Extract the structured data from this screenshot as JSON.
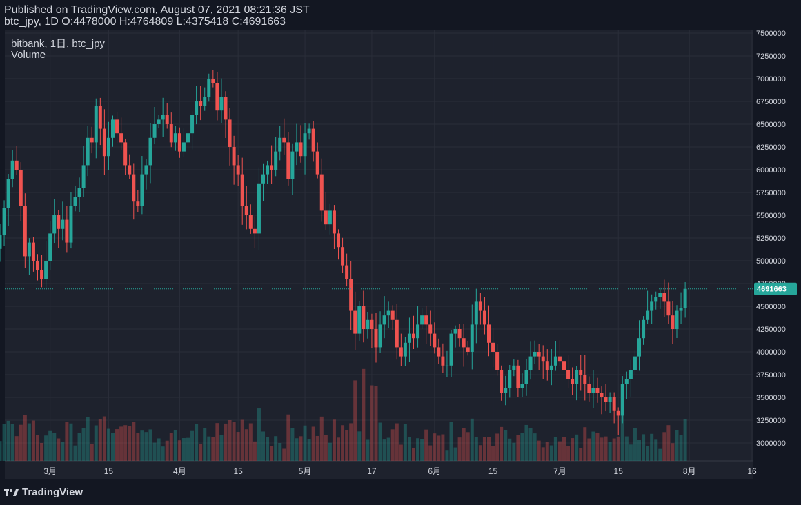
{
  "header": {
    "published": "Published on TradingView.com, August 07, 2021 08:21:36 JST",
    "ohlc": "btc_jpy, 1D O:4478000 H:4764809 L:4375418 C:4691663"
  },
  "legend": {
    "symbol": "bitbank, 1日, btc_jpy",
    "indicator": "Volume"
  },
  "brand": {
    "name": "TradingView"
  },
  "colors": {
    "background": "#131722",
    "pane": "#1e222d",
    "up": "#26a69a",
    "down": "#ef5350",
    "grid": "#2a2e39",
    "text": "#d1d4dc",
    "last_price": "#26a69a"
  },
  "chart_data": {
    "type": "candlestick",
    "ylim": [
      2750000,
      7500000
    ],
    "y_ticks": [
      3000000,
      3250000,
      3500000,
      3750000,
      4000000,
      4250000,
      4500000,
      4750000,
      5000000,
      5250000,
      5500000,
      5750000,
      6000000,
      6250000,
      6500000,
      6750000,
      7000000,
      7250000,
      7500000
    ],
    "y_tick_labels": [
      "3000000",
      "3250000",
      "3500000",
      "3750000",
      "4000000",
      "4250000",
      "4500000",
      "4750000",
      "5000000",
      "5250000",
      "5500000",
      "5750000",
      "6000000",
      "6250000",
      "6500000",
      "6750000",
      "7000000",
      "7250000",
      "7500000"
    ],
    "x_range": [
      "2021-02-17",
      "2021-08-16"
    ],
    "x_ticks": [
      {
        "date": "2021-03-01",
        "label": "3月"
      },
      {
        "date": "2021-03-15",
        "label": "15"
      },
      {
        "date": "2021-04-01",
        "label": "4月"
      },
      {
        "date": "2021-04-15",
        "label": "15"
      },
      {
        "date": "2021-05-01",
        "label": "5月"
      },
      {
        "date": "2021-05-17",
        "label": "17"
      },
      {
        "date": "2021-06-01",
        "label": "6月"
      },
      {
        "date": "2021-06-15",
        "label": "15"
      },
      {
        "date": "2021-07-01",
        "label": "7月"
      },
      {
        "date": "2021-07-15",
        "label": "15"
      },
      {
        "date": "2021-08-01",
        "label": "8月"
      },
      {
        "date": "2021-08-16",
        "label": "16"
      }
    ],
    "last_price": 4691663,
    "last_price_label": "4691663",
    "start_date": "2021-02-17",
    "closes": [
      5280000,
      5580000,
      5900000,
      6100000,
      6000000,
      5600000,
      5050000,
      5200000,
      5000000,
      4900000,
      4800000,
      5000000,
      5300000,
      5500000,
      5350000,
      5450000,
      5200000,
      5600000,
      5700000,
      5800000,
      6050000,
      6350000,
      6300000,
      6700000,
      6450000,
      6150000,
      6350000,
      6550000,
      6400000,
      6300000,
      6050000,
      5950000,
      5650000,
      5600000,
      5950000,
      6050000,
      6350000,
      6500000,
      6550000,
      6600000,
      6500000,
      6300000,
      6400000,
      6200000,
      6300000,
      6400000,
      6600000,
      6750000,
      6700000,
      6800000,
      7000000,
      6950000,
      6650000,
      6800000,
      6550000,
      6250000,
      6050000,
      5950000,
      5600000,
      5500000,
      5350000,
      5300000,
      5850000,
      5950000,
      6050000,
      6000000,
      6200000,
      6350000,
      6300000,
      5900000,
      6200000,
      6300000,
      6150000,
      6400000,
      6450000,
      6200000,
      5950000,
      5550000,
      5400000,
      5550000,
      5300000,
      5150000,
      4950000,
      4800000,
      4450000,
      4200000,
      4500000,
      4250000,
      4350000,
      4250000,
      4050000,
      4300000,
      4400000,
      4450000,
      4350000,
      4050000,
      3950000,
      4100000,
      4200000,
      4150000,
      4300000,
      4400000,
      4300000,
      4200000,
      4050000,
      3950000,
      3850000,
      3850000,
      4200000,
      4250000,
      4150000,
      4050000,
      4000000,
      4300000,
      4550000,
      4450000,
      4300000,
      4100000,
      4000000,
      3800000,
      3550000,
      3600000,
      3800000,
      3850000,
      3600000,
      3650000,
      3800000,
      3950000,
      4000000,
      3950000,
      3900000,
      3800000,
      3850000,
      3950000,
      3900000,
      3800000,
      3700000,
      3650000,
      3800000,
      3750000,
      3650000,
      3550000,
      3600000,
      3550000,
      3500000,
      3450000,
      3500000,
      3350000,
      3300000,
      3650000,
      3700000,
      3800000,
      3950000,
      4150000,
      4350000,
      4450000,
      4550000,
      4600000,
      4650000,
      4550000,
      4400000,
      4250000,
      4450000,
      4478000,
      4691663
    ]
  }
}
